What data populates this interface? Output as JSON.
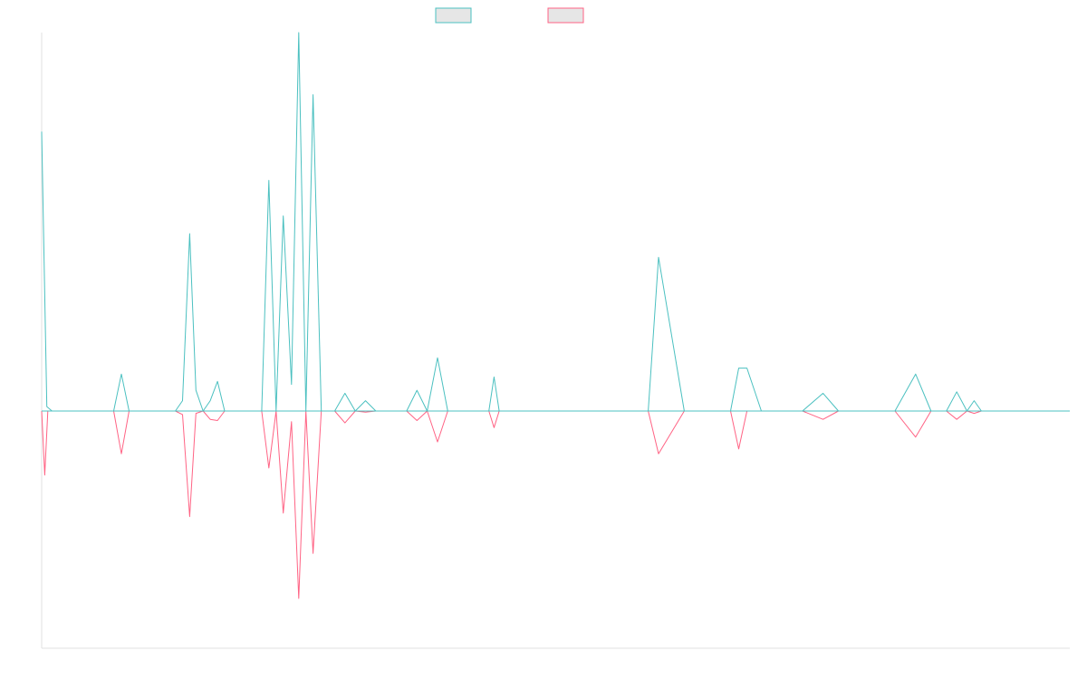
{
  "chart_data": {
    "type": "line",
    "title": "",
    "xlabel": "",
    "ylabel": "",
    "grid": false,
    "legend_position": "top-center",
    "xlim": [
      0,
      100
    ],
    "ylim": [
      -100,
      100
    ],
    "series": [
      {
        "color": "#4bc0c0",
        "fill": "#e6e6e6",
        "direction": "up",
        "x": [
          0,
          0.5,
          1,
          1.5,
          7,
          7.75,
          8.5,
          13,
          13.7,
          14.4,
          15,
          15.7,
          16.4,
          17.1,
          17.8,
          18.5,
          19.2,
          20,
          20.7,
          21.4,
          22.1,
          22.8,
          23.5,
          24.3,
          25,
          25.7,
          26.4,
          27.2,
          28.5,
          29.5,
          30.5,
          31.5,
          32.5,
          33.5,
          35.5,
          36.5,
          37.5,
          38.5,
          39.5,
          40.5,
          41.5,
          42.5,
          43.5,
          44,
          44.5,
          45,
          45.5,
          46,
          48,
          50,
          52,
          55,
          57,
          59,
          60,
          62.5,
          65,
          67,
          67.8,
          68.6,
          70,
          72,
          74,
          76,
          77.5,
          78.3,
          79,
          81,
          83,
          85,
          86.5,
          87.2,
          88,
          89,
          90,
          90.7,
          91.4,
          92,
          93,
          94,
          95,
          96,
          97,
          98,
          99,
          100
        ],
        "y": [
          94.5,
          1.5,
          0,
          0,
          0,
          12.5,
          0,
          0,
          3.5,
          60,
          7,
          0,
          3.5,
          10,
          0,
          0,
          0,
          0,
          0,
          0,
          78,
          0,
          66,
          9,
          128,
          0,
          107,
          0,
          0,
          6,
          0,
          3.5,
          0,
          0,
          0,
          7,
          0,
          18,
          0,
          0,
          0,
          0,
          0,
          11.5,
          0,
          0,
          0,
          0,
          0,
          0,
          0,
          0,
          0,
          0,
          52,
          0,
          0,
          0,
          14.5,
          14.5,
          0,
          0,
          0,
          6,
          0,
          0,
          0,
          0,
          0,
          12.5,
          0,
          0,
          0,
          6.5,
          0,
          3.5,
          0,
          0,
          0,
          0,
          0,
          0,
          0,
          0,
          0,
          0
        ]
      },
      {
        "color": "#ff6384",
        "fill": "#e6e6e6",
        "direction": "down",
        "x": [
          0,
          0.3,
          0.6,
          1.5,
          7,
          7.75,
          8.5,
          13,
          13.7,
          14.4,
          15,
          15.7,
          16.4,
          17.1,
          17.8,
          18.5,
          19.2,
          20,
          20.7,
          21.4,
          22.1,
          22.8,
          23.5,
          24.3,
          25,
          25.7,
          26.4,
          27.2,
          28.5,
          29.5,
          30.5,
          31.5,
          32.5,
          33.5,
          35.5,
          36.5,
          37.5,
          38.5,
          39.5,
          40.5,
          41.5,
          42.5,
          43.5,
          44,
          44.5,
          45,
          45.5,
          46,
          48,
          50,
          52,
          55,
          57,
          59,
          60,
          62.5,
          65,
          67,
          67.8,
          68.6,
          70,
          72,
          74,
          76,
          77.5,
          78.3,
          79,
          81,
          83,
          85,
          86.5,
          87.2,
          88,
          89,
          90,
          90.7,
          91.4,
          92,
          93,
          94,
          95,
          96,
          97,
          98,
          99,
          100
        ],
        "y": [
          0,
          27,
          0,
          0,
          0,
          18,
          0,
          0,
          1.5,
          44.5,
          1,
          0,
          3.5,
          4,
          0,
          0,
          0,
          0,
          0,
          0,
          24,
          0,
          43,
          4.5,
          79,
          0,
          60,
          0,
          0,
          5,
          0,
          0.5,
          0,
          0,
          0,
          4,
          0,
          13,
          0,
          0,
          0,
          0,
          0,
          7,
          0,
          0,
          0,
          0,
          0,
          0,
          0,
          0,
          0,
          0,
          18,
          0,
          0,
          0,
          16,
          0,
          0,
          0,
          0,
          3.5,
          0,
          0,
          0,
          0,
          0,
          11,
          0,
          0,
          0,
          3.5,
          0,
          1,
          0,
          0,
          0,
          0,
          0,
          0,
          0,
          0,
          0,
          0
        ]
      }
    ]
  }
}
